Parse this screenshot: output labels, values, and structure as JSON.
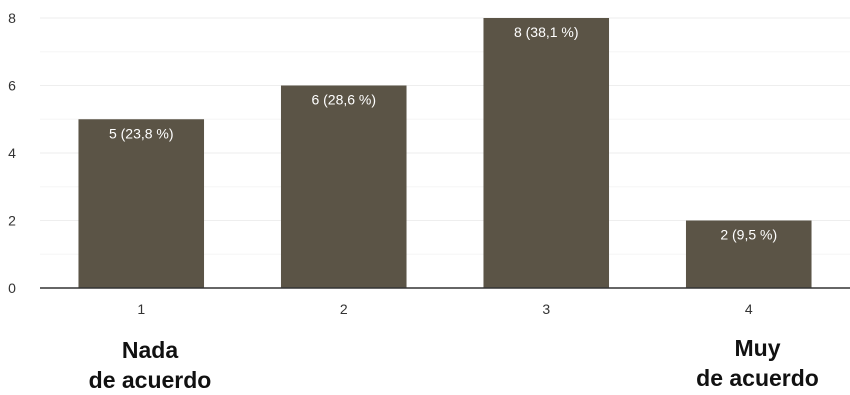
{
  "chart_data": {
    "type": "bar",
    "categories": [
      "1",
      "2",
      "3",
      "4"
    ],
    "values": [
      5,
      6,
      8,
      2
    ],
    "data_labels": [
      "5 (23,8 %)",
      "6 (28,6 %)",
      "8 (38,1 %)",
      "2 (9,5 %)"
    ],
    "y_ticks": [
      "0",
      "2",
      "4",
      "6",
      "8"
    ],
    "ylim": [
      0,
      8
    ],
    "grid": true,
    "bar_color": "#5b5446",
    "data_label_color": "#ffffff",
    "gridline_color": "#eeeeee",
    "axis_color": "#333333"
  },
  "scale_labels": {
    "left": [
      "Nada",
      "de acuerdo"
    ],
    "right": [
      "Muy",
      "de acuerdo"
    ]
  }
}
